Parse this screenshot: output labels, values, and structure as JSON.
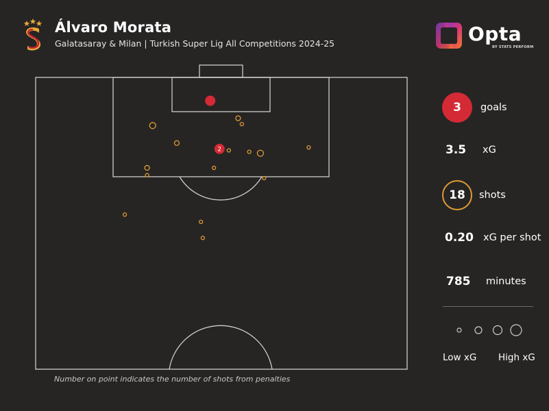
{
  "header": {
    "title": "Álvaro Morata",
    "subtitle": "Galatasaray & Milan | Turkish Super Lig All Competitions 2024-25",
    "brand": "Opta",
    "brand_sub": "BY STATS PERFORM"
  },
  "stats": {
    "goals_value": "3",
    "goals_label": "goals",
    "xg_value": "3.5",
    "xg_label": "xG",
    "shots_value": "18",
    "shots_label": "shots",
    "xgps_value": "0.20",
    "xgps_label": "xG per shot",
    "minutes_value": "785",
    "minutes_label": "minutes"
  },
  "legend": {
    "low": "Low xG",
    "high": "High xG"
  },
  "footnote": "Number on point indicates the number of shots from penalties",
  "colors": {
    "goal": "#d42a35",
    "shot": "#e09a33",
    "lines": "#cfcdca",
    "background": "#262524"
  },
  "chart_data": {
    "type": "scatter",
    "title": "Álvaro Morata",
    "coordinate_system": "attacking half of pitch, x = 0 (left touchline) to 100 (right touchline), y = 0 (goal line) upwards toward halfway line (100 = halfway line)",
    "goals": [
      {
        "x": 47,
        "y": 8,
        "xg": "medium"
      },
      {
        "x": 49.5,
        "y": 24.5,
        "xg": "medium",
        "penalty_count": 2,
        "label": "2"
      }
    ],
    "shots": [
      {
        "x": 31.5,
        "y": 16.5,
        "xg": "low-medium"
      },
      {
        "x": 54.5,
        "y": 14,
        "xg": "low"
      },
      {
        "x": 55.5,
        "y": 16,
        "xg": "very low"
      },
      {
        "x": 38,
        "y": 22.5,
        "xg": "low"
      },
      {
        "x": 52,
        "y": 25,
        "xg": "very low"
      },
      {
        "x": 57.5,
        "y": 25.5,
        "xg": "very low"
      },
      {
        "x": 60.5,
        "y": 26,
        "xg": "low-medium"
      },
      {
        "x": 73.5,
        "y": 24,
        "xg": "very low"
      },
      {
        "x": 30,
        "y": 31,
        "xg": "low"
      },
      {
        "x": 30,
        "y": 33.5,
        "xg": "very low"
      },
      {
        "x": 48,
        "y": 31,
        "xg": "very low"
      },
      {
        "x": 61.5,
        "y": 34.5,
        "xg": "very low"
      },
      {
        "x": 24,
        "y": 47,
        "xg": "very low"
      },
      {
        "x": 44.5,
        "y": 49.5,
        "xg": "very low"
      },
      {
        "x": 45,
        "y": 55,
        "xg": "very low"
      }
    ],
    "legend_sizes": [
      "Low xG",
      "High xG"
    ],
    "marker_note": "Number on point indicates the number of shots from penalties"
  }
}
